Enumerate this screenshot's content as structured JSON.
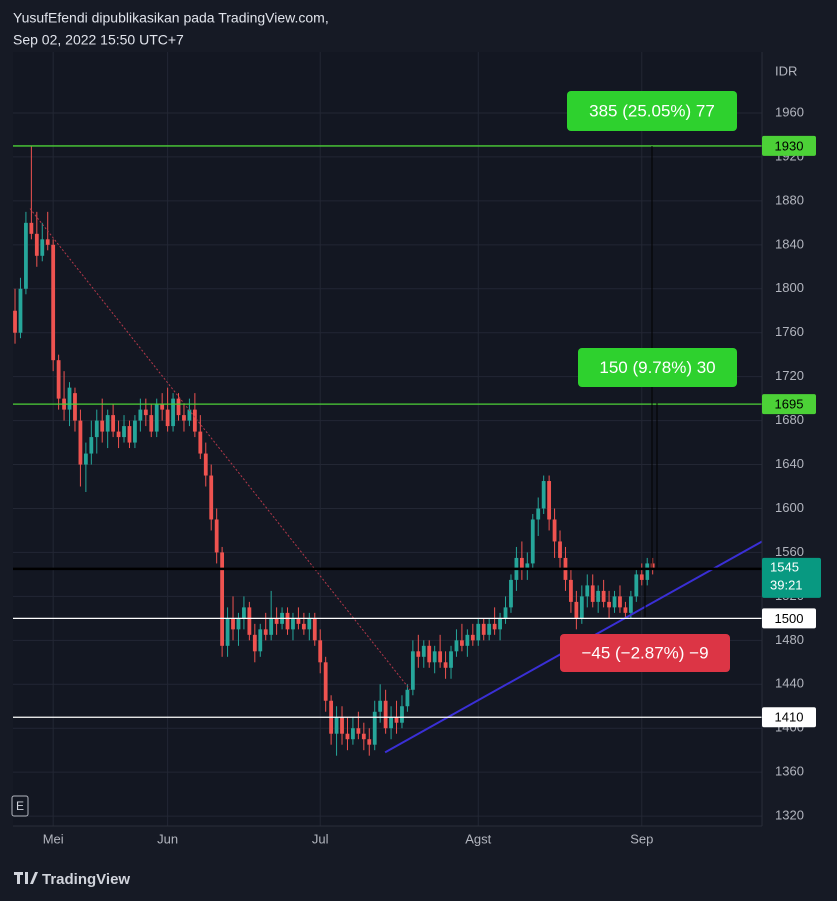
{
  "header": {
    "author_line": "YusufEfendi dipublikasikan pada TradingView.com,",
    "date_line": "Sep 02, 2022 15:50 UTC+7"
  },
  "footer": {
    "brand": "TradingView"
  },
  "chart_data": {
    "type": "candlestick",
    "currency": "IDR",
    "scale_button": "E",
    "up_color": "#26a69a",
    "down_color": "#ef5350",
    "xlim": [
      -0.37,
      137.06
    ],
    "xticks": [
      {
        "value": 7,
        "label": "Mei"
      },
      {
        "value": 28,
        "label": "Jun"
      },
      {
        "value": 56,
        "label": "Jul"
      },
      {
        "value": 85,
        "label": "Agst"
      },
      {
        "value": 115,
        "label": "Sep"
      }
    ],
    "ylim": [
      1311,
      2015.5
    ],
    "yticks": [
      1320,
      1360,
      1400,
      1440,
      1480,
      1520,
      1560,
      1600,
      1640,
      1680,
      1720,
      1760,
      1800,
      1840,
      1880,
      1920,
      1960
    ],
    "grid": true,
    "candles": [
      {
        "o": 1780,
        "h": 1800,
        "l": 1750,
        "c": 1760
      },
      {
        "o": 1760,
        "h": 1810,
        "l": 1755,
        "c": 1800
      },
      {
        "o": 1800,
        "h": 1870,
        "l": 1795,
        "c": 1860
      },
      {
        "o": 1860,
        "h": 1930,
        "l": 1845,
        "c": 1850
      },
      {
        "o": 1850,
        "h": 1870,
        "l": 1820,
        "c": 1830
      },
      {
        "o": 1830,
        "h": 1860,
        "l": 1825,
        "c": 1845
      },
      {
        "o": 1845,
        "h": 1870,
        "l": 1835,
        "c": 1840
      },
      {
        "o": 1840,
        "h": 1845,
        "l": 1725,
        "c": 1735
      },
      {
        "o": 1735,
        "h": 1740,
        "l": 1690,
        "c": 1700
      },
      {
        "o": 1700,
        "h": 1725,
        "l": 1680,
        "c": 1690
      },
      {
        "o": 1690,
        "h": 1715,
        "l": 1675,
        "c": 1710
      },
      {
        "o": 1705,
        "h": 1710,
        "l": 1670,
        "c": 1680
      },
      {
        "o": 1680,
        "h": 1690,
        "l": 1620,
        "c": 1640
      },
      {
        "o": 1640,
        "h": 1660,
        "l": 1615,
        "c": 1650
      },
      {
        "o": 1650,
        "h": 1680,
        "l": 1640,
        "c": 1665
      },
      {
        "o": 1665,
        "h": 1690,
        "l": 1650,
        "c": 1680
      },
      {
        "o": 1680,
        "h": 1700,
        "l": 1660,
        "c": 1670
      },
      {
        "o": 1670,
        "h": 1690,
        "l": 1655,
        "c": 1685
      },
      {
        "o": 1685,
        "h": 1695,
        "l": 1665,
        "c": 1670
      },
      {
        "o": 1670,
        "h": 1680,
        "l": 1655,
        "c": 1665
      },
      {
        "o": 1665,
        "h": 1685,
        "l": 1660,
        "c": 1675
      },
      {
        "o": 1675,
        "h": 1680,
        "l": 1655,
        "c": 1660
      },
      {
        "o": 1660,
        "h": 1685,
        "l": 1655,
        "c": 1680
      },
      {
        "o": 1680,
        "h": 1700,
        "l": 1670,
        "c": 1690
      },
      {
        "o": 1690,
        "h": 1700,
        "l": 1675,
        "c": 1685
      },
      {
        "o": 1685,
        "h": 1695,
        "l": 1665,
        "c": 1670
      },
      {
        "o": 1670,
        "h": 1700,
        "l": 1665,
        "c": 1695
      },
      {
        "o": 1695,
        "h": 1705,
        "l": 1680,
        "c": 1690
      },
      {
        "o": 1690,
        "h": 1710,
        "l": 1670,
        "c": 1675
      },
      {
        "o": 1675,
        "h": 1705,
        "l": 1670,
        "c": 1700
      },
      {
        "o": 1700,
        "h": 1705,
        "l": 1680,
        "c": 1685
      },
      {
        "o": 1685,
        "h": 1695,
        "l": 1670,
        "c": 1680
      },
      {
        "o": 1680,
        "h": 1700,
        "l": 1675,
        "c": 1690
      },
      {
        "o": 1690,
        "h": 1705,
        "l": 1665,
        "c": 1670
      },
      {
        "o": 1670,
        "h": 1685,
        "l": 1645,
        "c": 1650
      },
      {
        "o": 1650,
        "h": 1660,
        "l": 1620,
        "c": 1630
      },
      {
        "o": 1630,
        "h": 1640,
        "l": 1580,
        "c": 1590
      },
      {
        "o": 1590,
        "h": 1600,
        "l": 1550,
        "c": 1560
      },
      {
        "o": 1560,
        "h": 1565,
        "l": 1465,
        "c": 1475
      },
      {
        "o": 1475,
        "h": 1510,
        "l": 1465,
        "c": 1500
      },
      {
        "o": 1500,
        "h": 1520,
        "l": 1480,
        "c": 1490
      },
      {
        "o": 1490,
        "h": 1505,
        "l": 1475,
        "c": 1500
      },
      {
        "o": 1500,
        "h": 1520,
        "l": 1490,
        "c": 1510
      },
      {
        "o": 1510,
        "h": 1515,
        "l": 1480,
        "c": 1485
      },
      {
        "o": 1485,
        "h": 1495,
        "l": 1460,
        "c": 1470
      },
      {
        "o": 1470,
        "h": 1495,
        "l": 1465,
        "c": 1490
      },
      {
        "o": 1490,
        "h": 1505,
        "l": 1480,
        "c": 1485
      },
      {
        "o": 1485,
        "h": 1525,
        "l": 1480,
        "c": 1500
      },
      {
        "o": 1500,
        "h": 1510,
        "l": 1485,
        "c": 1495
      },
      {
        "o": 1495,
        "h": 1510,
        "l": 1490,
        "c": 1505
      },
      {
        "o": 1505,
        "h": 1510,
        "l": 1485,
        "c": 1490
      },
      {
        "o": 1490,
        "h": 1505,
        "l": 1480,
        "c": 1500
      },
      {
        "o": 1500,
        "h": 1510,
        "l": 1490,
        "c": 1495
      },
      {
        "o": 1495,
        "h": 1505,
        "l": 1485,
        "c": 1490
      },
      {
        "o": 1490,
        "h": 1505,
        "l": 1480,
        "c": 1500
      },
      {
        "o": 1500,
        "h": 1505,
        "l": 1475,
        "c": 1480
      },
      {
        "o": 1480,
        "h": 1490,
        "l": 1450,
        "c": 1460
      },
      {
        "o": 1460,
        "h": 1465,
        "l": 1415,
        "c": 1425
      },
      {
        "o": 1425,
        "h": 1430,
        "l": 1385,
        "c": 1395
      },
      {
        "o": 1395,
        "h": 1420,
        "l": 1375,
        "c": 1410
      },
      {
        "o": 1410,
        "h": 1420,
        "l": 1385,
        "c": 1395
      },
      {
        "o": 1395,
        "h": 1410,
        "l": 1380,
        "c": 1390
      },
      {
        "o": 1390,
        "h": 1410,
        "l": 1385,
        "c": 1400
      },
      {
        "o": 1400,
        "h": 1415,
        "l": 1390,
        "c": 1395
      },
      {
        "o": 1395,
        "h": 1405,
        "l": 1380,
        "c": 1390
      },
      {
        "o": 1390,
        "h": 1400,
        "l": 1375,
        "c": 1385
      },
      {
        "o": 1385,
        "h": 1425,
        "l": 1380,
        "c": 1415
      },
      {
        "o": 1415,
        "h": 1440,
        "l": 1405,
        "c": 1425
      },
      {
        "o": 1425,
        "h": 1435,
        "l": 1395,
        "c": 1400
      },
      {
        "o": 1400,
        "h": 1420,
        "l": 1390,
        "c": 1410
      },
      {
        "o": 1410,
        "h": 1425,
        "l": 1395,
        "c": 1405
      },
      {
        "o": 1405,
        "h": 1430,
        "l": 1400,
        "c": 1420
      },
      {
        "o": 1420,
        "h": 1440,
        "l": 1415,
        "c": 1435
      },
      {
        "o": 1435,
        "h": 1480,
        "l": 1430,
        "c": 1470
      },
      {
        "o": 1470,
        "h": 1485,
        "l": 1455,
        "c": 1465
      },
      {
        "o": 1465,
        "h": 1480,
        "l": 1455,
        "c": 1475
      },
      {
        "o": 1475,
        "h": 1480,
        "l": 1455,
        "c": 1460
      },
      {
        "o": 1460,
        "h": 1475,
        "l": 1450,
        "c": 1470
      },
      {
        "o": 1470,
        "h": 1485,
        "l": 1455,
        "c": 1460
      },
      {
        "o": 1460,
        "h": 1470,
        "l": 1445,
        "c": 1455
      },
      {
        "o": 1455,
        "h": 1475,
        "l": 1445,
        "c": 1470
      },
      {
        "o": 1470,
        "h": 1490,
        "l": 1465,
        "c": 1480
      },
      {
        "o": 1480,
        "h": 1495,
        "l": 1470,
        "c": 1475
      },
      {
        "o": 1475,
        "h": 1490,
        "l": 1465,
        "c": 1485
      },
      {
        "o": 1485,
        "h": 1495,
        "l": 1475,
        "c": 1480
      },
      {
        "o": 1480,
        "h": 1500,
        "l": 1475,
        "c": 1495
      },
      {
        "o": 1495,
        "h": 1500,
        "l": 1480,
        "c": 1485
      },
      {
        "o": 1485,
        "h": 1500,
        "l": 1480,
        "c": 1495
      },
      {
        "o": 1495,
        "h": 1510,
        "l": 1485,
        "c": 1490
      },
      {
        "o": 1490,
        "h": 1505,
        "l": 1480,
        "c": 1500
      },
      {
        "o": 1500,
        "h": 1520,
        "l": 1495,
        "c": 1510
      },
      {
        "o": 1510,
        "h": 1540,
        "l": 1505,
        "c": 1535
      },
      {
        "o": 1535,
        "h": 1565,
        "l": 1525,
        "c": 1555
      },
      {
        "o": 1555,
        "h": 1570,
        "l": 1535,
        "c": 1545
      },
      {
        "o": 1545,
        "h": 1560,
        "l": 1535,
        "c": 1550
      },
      {
        "o": 1550,
        "h": 1595,
        "l": 1545,
        "c": 1590
      },
      {
        "o": 1590,
        "h": 1610,
        "l": 1575,
        "c": 1600
      },
      {
        "o": 1600,
        "h": 1630,
        "l": 1595,
        "c": 1625
      },
      {
        "o": 1625,
        "h": 1630,
        "l": 1580,
        "c": 1590
      },
      {
        "o": 1590,
        "h": 1600,
        "l": 1555,
        "c": 1570
      },
      {
        "o": 1570,
        "h": 1580,
        "l": 1545,
        "c": 1555
      },
      {
        "o": 1555,
        "h": 1565,
        "l": 1525,
        "c": 1535
      },
      {
        "o": 1535,
        "h": 1545,
        "l": 1505,
        "c": 1515
      },
      {
        "o": 1515,
        "h": 1525,
        "l": 1490,
        "c": 1500
      },
      {
        "o": 1500,
        "h": 1530,
        "l": 1495,
        "c": 1520
      },
      {
        "o": 1520,
        "h": 1540,
        "l": 1510,
        "c": 1530
      },
      {
        "o": 1530,
        "h": 1540,
        "l": 1510,
        "c": 1515
      },
      {
        "o": 1515,
        "h": 1530,
        "l": 1505,
        "c": 1525
      },
      {
        "o": 1525,
        "h": 1535,
        "l": 1510,
        "c": 1515
      },
      {
        "o": 1515,
        "h": 1525,
        "l": 1500,
        "c": 1510
      },
      {
        "o": 1510,
        "h": 1525,
        "l": 1505,
        "c": 1520
      },
      {
        "o": 1520,
        "h": 1530,
        "l": 1505,
        "c": 1510
      },
      {
        "o": 1510,
        "h": 1515,
        "l": 1500,
        "c": 1505
      },
      {
        "o": 1505,
        "h": 1525,
        "l": 1500,
        "c": 1520
      },
      {
        "o": 1520,
        "h": 1545,
        "l": 1515,
        "c": 1540
      },
      {
        "o": 1540,
        "h": 1550,
        "l": 1530,
        "c": 1535
      },
      {
        "o": 1535,
        "h": 1555,
        "l": 1530,
        "c": 1550
      },
      {
        "o": 1550,
        "h": 1555,
        "l": 1540,
        "c": 1545
      }
    ],
    "levels": [
      {
        "value": 1930,
        "color": "#4cd137",
        "text_color": "#000000"
      },
      {
        "value": 1695,
        "color": "#4cd137",
        "text_color": "#000000"
      },
      {
        "value": 1500,
        "color": "#ffffff",
        "text_color": "#000000"
      },
      {
        "value": 1410,
        "color": "#ffffff",
        "text_color": "#000000"
      }
    ],
    "last_price": {
      "value": 1545,
      "countdown": "39:21",
      "color": "#089981",
      "line_color": "#000000"
    },
    "trendlines": [
      {
        "color": "#b2384a",
        "dashed": true,
        "x": [
          2.75,
          72.5
        ],
        "y": [
          1873,
          1435
        ]
      },
      {
        "color": "#3a2fd6",
        "dashed": false,
        "x": [
          67.9,
          137.06
        ],
        "y": [
          1378,
          1570
        ]
      }
    ],
    "measures": [
      {
        "text": "385 (25.05%) 77",
        "color": "#2ed12e"
      },
      {
        "text": "150 (9.78%) 30",
        "color": "#2ed12e"
      },
      {
        "text": "−45 (−2.87%) −9",
        "color": "#dc3545"
      }
    ]
  }
}
